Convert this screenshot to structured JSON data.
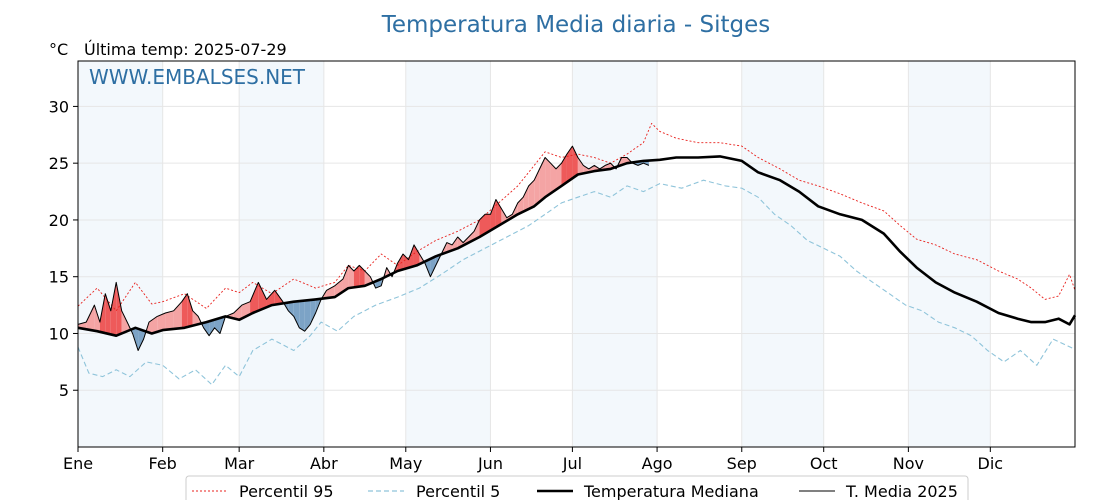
{
  "chart_data": {
    "type": "line",
    "title": "Temperatura Media diaria - Sitges",
    "subtitle": "Última temp: 2025-07-29",
    "y_unit": "°C",
    "watermark": "WWW.EMBALSES.NET",
    "xlim": [
      1,
      366
    ],
    "ylim": [
      0,
      34
    ],
    "y_ticks": [
      5,
      10,
      15,
      20,
      25,
      30
    ],
    "grid": true,
    "legend_position": "bottom-center",
    "months": [
      {
        "label": "Ene",
        "day": 1
      },
      {
        "label": "Feb",
        "day": 32
      },
      {
        "label": "Mar",
        "day": 60
      },
      {
        "label": "Abr",
        "day": 91
      },
      {
        "label": "May",
        "day": 121
      },
      {
        "label": "Jun",
        "day": 152
      },
      {
        "label": "Jul",
        "day": 182
      },
      {
        "label": "Ago",
        "day": 213
      },
      {
        "label": "Sep",
        "day": 244
      },
      {
        "label": "Oct",
        "day": 274
      },
      {
        "label": "Nov",
        "day": 305
      },
      {
        "label": "Dic",
        "day": 335
      }
    ],
    "colors": {
      "p95": "#e8201c",
      "p5": "#8fc4da",
      "median": "#000000",
      "year": "#000000",
      "above": "#f4a4a4",
      "above_strong": "#ee5a5a",
      "below": "#7ca3c6",
      "band_shade": "#f3f8fc",
      "grid": "#e6e6e6",
      "title": "#2e6fa3"
    },
    "series": [
      {
        "name": "Percentil 95",
        "style": "dotted-red",
        "points": [
          [
            1,
            12.4
          ],
          [
            8,
            14.0
          ],
          [
            15,
            12.0
          ],
          [
            22,
            14.5
          ],
          [
            28,
            12.6
          ],
          [
            32,
            12.8
          ],
          [
            40,
            13.5
          ],
          [
            48,
            12.2
          ],
          [
            55,
            14.0
          ],
          [
            60,
            13.6
          ],
          [
            65,
            14.5
          ],
          [
            72,
            13.5
          ],
          [
            80,
            14.8
          ],
          [
            88,
            14.0
          ],
          [
            95,
            14.5
          ],
          [
            100,
            16.0
          ],
          [
            106,
            15.5
          ],
          [
            112,
            17.0
          ],
          [
            118,
            16.0
          ],
          [
            125,
            17.2
          ],
          [
            132,
            18.2
          ],
          [
            140,
            19.0
          ],
          [
            148,
            20.0
          ],
          [
            155,
            21.5
          ],
          [
            162,
            23.0
          ],
          [
            168,
            24.8
          ],
          [
            172,
            26.0
          ],
          [
            178,
            25.5
          ],
          [
            184,
            25.8
          ],
          [
            190,
            25.5
          ],
          [
            196,
            25.0
          ],
          [
            202,
            25.8
          ],
          [
            208,
            26.8
          ],
          [
            211,
            28.5
          ],
          [
            214,
            27.8
          ],
          [
            220,
            27.2
          ],
          [
            228,
            26.8
          ],
          [
            236,
            26.8
          ],
          [
            244,
            26.5
          ],
          [
            250,
            25.5
          ],
          [
            258,
            24.5
          ],
          [
            265,
            23.5
          ],
          [
            272,
            23.0
          ],
          [
            280,
            22.3
          ],
          [
            288,
            21.5
          ],
          [
            296,
            20.8
          ],
          [
            302,
            19.5
          ],
          [
            308,
            18.3
          ],
          [
            315,
            17.8
          ],
          [
            322,
            17.0
          ],
          [
            330,
            16.5
          ],
          [
            338,
            15.5
          ],
          [
            345,
            14.8
          ],
          [
            350,
            14.0
          ],
          [
            355,
            13.0
          ],
          [
            360,
            13.3
          ],
          [
            364,
            15.2
          ],
          [
            366,
            13.8
          ]
        ]
      },
      {
        "name": "Percentil 5",
        "style": "dashed-lightblue",
        "points": [
          [
            1,
            8.8
          ],
          [
            5,
            6.5
          ],
          [
            10,
            6.2
          ],
          [
            15,
            6.8
          ],
          [
            20,
            6.2
          ],
          [
            26,
            7.5
          ],
          [
            32,
            7.2
          ],
          [
            38,
            6.0
          ],
          [
            44,
            6.8
          ],
          [
            50,
            5.5
          ],
          [
            55,
            7.2
          ],
          [
            60,
            6.2
          ],
          [
            65,
            8.5
          ],
          [
            72,
            9.5
          ],
          [
            80,
            8.5
          ],
          [
            86,
            9.8
          ],
          [
            90,
            11.0
          ],
          [
            96,
            10.2
          ],
          [
            102,
            11.5
          ],
          [
            110,
            12.5
          ],
          [
            118,
            13.2
          ],
          [
            126,
            14.0
          ],
          [
            134,
            15.2
          ],
          [
            142,
            16.5
          ],
          [
            150,
            17.5
          ],
          [
            158,
            18.5
          ],
          [
            166,
            19.5
          ],
          [
            172,
            20.5
          ],
          [
            178,
            21.5
          ],
          [
            184,
            22.0
          ],
          [
            190,
            22.5
          ],
          [
            196,
            22.0
          ],
          [
            202,
            23.0
          ],
          [
            208,
            22.5
          ],
          [
            214,
            23.2
          ],
          [
            222,
            22.8
          ],
          [
            230,
            23.5
          ],
          [
            238,
            23.0
          ],
          [
            244,
            22.8
          ],
          [
            250,
            22.0
          ],
          [
            256,
            20.5
          ],
          [
            262,
            19.5
          ],
          [
            268,
            18.2
          ],
          [
            274,
            17.5
          ],
          [
            280,
            16.8
          ],
          [
            286,
            15.5
          ],
          [
            292,
            14.5
          ],
          [
            298,
            13.5
          ],
          [
            304,
            12.5
          ],
          [
            310,
            12.0
          ],
          [
            316,
            11.0
          ],
          [
            322,
            10.5
          ],
          [
            328,
            9.8
          ],
          [
            334,
            8.5
          ],
          [
            340,
            7.5
          ],
          [
            346,
            8.5
          ],
          [
            352,
            7.2
          ],
          [
            358,
            9.5
          ],
          [
            366,
            8.6
          ]
        ]
      },
      {
        "name": "Temperatura Mediana",
        "style": "thick-black",
        "points": [
          [
            1,
            10.5
          ],
          [
            8,
            10.2
          ],
          [
            15,
            9.8
          ],
          [
            22,
            10.5
          ],
          [
            28,
            10.0
          ],
          [
            32,
            10.3
          ],
          [
            40,
            10.5
          ],
          [
            48,
            11.0
          ],
          [
            55,
            11.5
          ],
          [
            60,
            11.2
          ],
          [
            65,
            11.8
          ],
          [
            72,
            12.5
          ],
          [
            80,
            12.8
          ],
          [
            88,
            13.0
          ],
          [
            95,
            13.2
          ],
          [
            100,
            14.0
          ],
          [
            106,
            14.2
          ],
          [
            112,
            14.8
          ],
          [
            118,
            15.5
          ],
          [
            125,
            16.0
          ],
          [
            132,
            16.8
          ],
          [
            140,
            17.5
          ],
          [
            148,
            18.5
          ],
          [
            155,
            19.5
          ],
          [
            162,
            20.5
          ],
          [
            168,
            21.2
          ],
          [
            172,
            22.0
          ],
          [
            178,
            23.0
          ],
          [
            184,
            24.0
          ],
          [
            190,
            24.3
          ],
          [
            196,
            24.5
          ],
          [
            202,
            25.0
          ],
          [
            208,
            25.2
          ],
          [
            214,
            25.3
          ],
          [
            220,
            25.5
          ],
          [
            228,
            25.5
          ],
          [
            236,
            25.6
          ],
          [
            244,
            25.2
          ],
          [
            250,
            24.2
          ],
          [
            258,
            23.5
          ],
          [
            265,
            22.5
          ],
          [
            272,
            21.2
          ],
          [
            280,
            20.5
          ],
          [
            288,
            20.0
          ],
          [
            296,
            18.8
          ],
          [
            302,
            17.2
          ],
          [
            308,
            15.8
          ],
          [
            315,
            14.5
          ],
          [
            322,
            13.6
          ],
          [
            330,
            12.8
          ],
          [
            338,
            11.8
          ],
          [
            345,
            11.3
          ],
          [
            350,
            11.0
          ],
          [
            355,
            11.0
          ],
          [
            360,
            11.3
          ],
          [
            364,
            10.8
          ],
          [
            366,
            11.6
          ]
        ]
      },
      {
        "name": "T. Media 2025",
        "style": "thin-black",
        "points": [
          [
            1,
            10.8
          ],
          [
            4,
            11.0
          ],
          [
            7,
            12.5
          ],
          [
            9,
            11.0
          ],
          [
            11,
            13.5
          ],
          [
            13,
            12.0
          ],
          [
            15,
            14.5
          ],
          [
            17,
            12.0
          ],
          [
            19,
            11.0
          ],
          [
            21,
            10.0
          ],
          [
            23,
            8.5
          ],
          [
            25,
            9.5
          ],
          [
            27,
            11.0
          ],
          [
            30,
            11.5
          ],
          [
            33,
            11.8
          ],
          [
            36,
            12.0
          ],
          [
            39,
            12.8
          ],
          [
            41,
            13.5
          ],
          [
            43,
            12.0
          ],
          [
            45,
            11.5
          ],
          [
            47,
            10.5
          ],
          [
            49,
            9.8
          ],
          [
            51,
            10.5
          ],
          [
            53,
            10.0
          ],
          [
            55,
            11.5
          ],
          [
            58,
            11.8
          ],
          [
            61,
            12.5
          ],
          [
            64,
            12.8
          ],
          [
            67,
            14.5
          ],
          [
            70,
            13.0
          ],
          [
            73,
            13.8
          ],
          [
            76,
            12.8
          ],
          [
            78,
            12.0
          ],
          [
            80,
            11.5
          ],
          [
            82,
            10.5
          ],
          [
            84,
            10.2
          ],
          [
            86,
            10.8
          ],
          [
            88,
            11.8
          ],
          [
            90,
            13.0
          ],
          [
            92,
            13.8
          ],
          [
            95,
            14.2
          ],
          [
            98,
            14.8
          ],
          [
            100,
            16.0
          ],
          [
            102,
            15.5
          ],
          [
            104,
            16.0
          ],
          [
            106,
            15.5
          ],
          [
            108,
            15.0
          ],
          [
            110,
            14.0
          ],
          [
            112,
            14.2
          ],
          [
            114,
            15.8
          ],
          [
            116,
            15.0
          ],
          [
            118,
            16.2
          ],
          [
            120,
            17.0
          ],
          [
            122,
            16.5
          ],
          [
            124,
            17.8
          ],
          [
            126,
            17.0
          ],
          [
            128,
            16.2
          ],
          [
            130,
            15.0
          ],
          [
            132,
            16.0
          ],
          [
            134,
            17.0
          ],
          [
            136,
            18.0
          ],
          [
            138,
            17.8
          ],
          [
            140,
            18.5
          ],
          [
            142,
            18.0
          ],
          [
            144,
            18.5
          ],
          [
            146,
            19.0
          ],
          [
            148,
            20.0
          ],
          [
            150,
            20.5
          ],
          [
            152,
            20.5
          ],
          [
            154,
            21.8
          ],
          [
            156,
            21.0
          ],
          [
            158,
            20.2
          ],
          [
            160,
            20.5
          ],
          [
            162,
            21.5
          ],
          [
            164,
            22.0
          ],
          [
            166,
            23.0
          ],
          [
            168,
            23.5
          ],
          [
            170,
            24.5
          ],
          [
            172,
            25.5
          ],
          [
            174,
            25.0
          ],
          [
            176,
            24.5
          ],
          [
            178,
            25.0
          ],
          [
            180,
            25.8
          ],
          [
            182,
            26.5
          ],
          [
            184,
            25.5
          ],
          [
            186,
            24.8
          ],
          [
            188,
            24.5
          ],
          [
            190,
            24.8
          ],
          [
            192,
            24.5
          ],
          [
            194,
            24.8
          ],
          [
            196,
            25.0
          ],
          [
            198,
            24.5
          ],
          [
            200,
            25.5
          ],
          [
            202,
            25.5
          ],
          [
            204,
            25.0
          ],
          [
            206,
            24.8
          ],
          [
            208,
            25.0
          ],
          [
            210,
            24.8
          ]
        ]
      }
    ]
  },
  "legend": {
    "p95_label": "Percentil 95",
    "p5_label": "Percentil 5",
    "median_label": "Temperatura Mediana",
    "year_label": "T. Media 2025"
  }
}
